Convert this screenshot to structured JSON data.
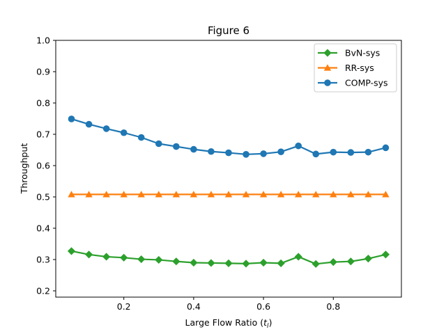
{
  "chart_data": {
    "type": "line",
    "title": "Figure 6",
    "xlabel": "Large Flow Ratio (",
    "xlabel_var": "t",
    "xlabel_sub": "l",
    "xlabel_end": ")",
    "ylabel": "Throughput",
    "xlim": [
      0.005,
      0.995
    ],
    "ylim": [
      0.18,
      1.0
    ],
    "xticks": [
      0.2,
      0.4,
      0.6,
      0.8
    ],
    "xtick_labels": [
      "0.2",
      "0.4",
      "0.6",
      "0.8"
    ],
    "yticks": [
      0.2,
      0.3,
      0.4,
      0.5,
      0.6,
      0.7,
      0.8,
      0.9,
      1.0
    ],
    "ytick_labels": [
      "0.2",
      "0.3",
      "0.4",
      "0.5",
      "0.6",
      "0.7",
      "0.8",
      "0.9",
      "1.0"
    ],
    "grid": false,
    "legend_position": "top-right",
    "x": [
      0.05,
      0.1,
      0.15,
      0.2,
      0.25,
      0.3,
      0.35,
      0.4,
      0.45,
      0.5,
      0.55,
      0.6,
      0.65,
      0.7,
      0.75,
      0.8,
      0.85,
      0.9,
      0.95
    ],
    "series": [
      {
        "name": "BvN-sys",
        "color": "#2ca02c",
        "marker": "diamond",
        "values": [
          0.327,
          0.316,
          0.309,
          0.306,
          0.301,
          0.299,
          0.294,
          0.29,
          0.289,
          0.288,
          0.287,
          0.29,
          0.288,
          0.309,
          0.286,
          0.292,
          0.294,
          0.303,
          0.316
        ]
      },
      {
        "name": "RR-sys",
        "color": "#ff7f0e",
        "marker": "triangle",
        "values": [
          0.508,
          0.508,
          0.508,
          0.508,
          0.508,
          0.508,
          0.508,
          0.508,
          0.508,
          0.508,
          0.508,
          0.508,
          0.508,
          0.508,
          0.508,
          0.508,
          0.508,
          0.508,
          0.508
        ]
      },
      {
        "name": "COMP-sys",
        "color": "#1f77b4",
        "marker": "circle",
        "values": [
          0.749,
          0.732,
          0.718,
          0.705,
          0.69,
          0.67,
          0.661,
          0.652,
          0.645,
          0.641,
          0.636,
          0.638,
          0.644,
          0.663,
          0.637,
          0.643,
          0.642,
          0.643,
          0.657
        ]
      }
    ]
  }
}
